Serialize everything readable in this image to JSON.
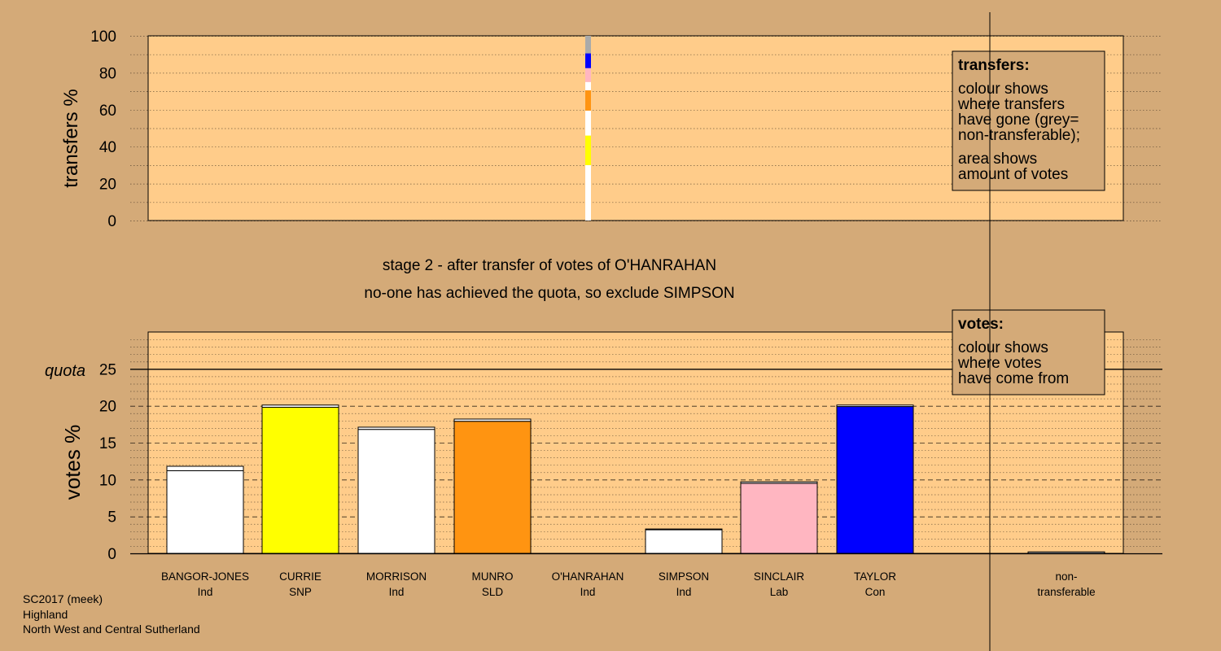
{
  "chart_data": [
    {
      "type": "bar",
      "id": "transfers",
      "ylabel": "transfers %",
      "ylim": [
        0,
        100
      ],
      "yticks": [
        0,
        20,
        40,
        60,
        80,
        100
      ],
      "grid": true,
      "transferred_from": "O'HANRAHAN",
      "segments": [
        {
          "to": "BANGOR-JONES",
          "value": 30.0,
          "color": "#ffffff"
        },
        {
          "to": "CURRIE",
          "value": 16.0,
          "color": "#ffff00"
        },
        {
          "to": "MORRISON",
          "value": 13.5,
          "color": "#ffffff"
        },
        {
          "to": "MUNRO",
          "value": 11.0,
          "color": "#ff9411"
        },
        {
          "to": "SIMPSON",
          "value": 4.5,
          "color": "#ffffff"
        },
        {
          "to": "SINCLAIR",
          "value": 7.5,
          "color": "#ffb6c1"
        },
        {
          "to": "TAYLOR",
          "value": 8.0,
          "color": "#0000ff"
        },
        {
          "to": "non-transferable",
          "value": 9.5,
          "color": "#aaaaaa"
        }
      ],
      "legend": {
        "title": "transfers:",
        "lines1": [
          "colour shows",
          "where transfers",
          "have gone (grey=",
          "non-transferable);"
        ],
        "lines2": [
          "area shows",
          "amount of votes"
        ],
        "placement": "top-right"
      }
    },
    {
      "type": "bar",
      "id": "votes",
      "ylabel": "votes %",
      "ylim": [
        0,
        30
      ],
      "yticks": [
        0,
        5,
        10,
        15,
        20,
        25
      ],
      "quota": 25,
      "quota_label": "quota",
      "grid": true,
      "candidates": [
        {
          "name": "BANGOR-JONES",
          "party": "Ind",
          "first": 11.2,
          "transfer": 0.6,
          "color": "#ffffff"
        },
        {
          "name": "CURRIE",
          "party": "SNP",
          "first": 19.8,
          "transfer": 0.3,
          "color": "#ffff00"
        },
        {
          "name": "MORRISON",
          "party": "Ind",
          "first": 16.8,
          "transfer": 0.3,
          "color": "#ffffff"
        },
        {
          "name": "MUNRO",
          "party": "SLD",
          "first": 17.9,
          "transfer": 0.3,
          "color": "#ff9411"
        },
        {
          "name": "O'HANRAHAN",
          "party": "Ind",
          "first": 0,
          "transfer": 0,
          "color": "#ffffff"
        },
        {
          "name": "SIMPSON",
          "party": "Ind",
          "first": 3.2,
          "transfer": 0.1,
          "color": "#ffffff"
        },
        {
          "name": "SINCLAIR",
          "party": "Lab",
          "first": 9.5,
          "transfer": 0.2,
          "color": "#ffb6c1"
        },
        {
          "name": "TAYLOR",
          "party": "Con",
          "first": 19.9,
          "transfer": 0.2,
          "color": "#0000ff"
        }
      ],
      "nontransferable": {
        "label1": "non-",
        "label2": "transferable",
        "value": 0.2
      },
      "legend": {
        "title": "votes:",
        "lines": [
          "colour shows",
          "where votes",
          "have come from"
        ],
        "placement": "top-right"
      }
    }
  ],
  "stage": {
    "line1": "stage 2 - after transfer of votes of O'HANRAHAN",
    "line2": "no-one has achieved the quota, so exclude SIMPSON"
  },
  "footer": {
    "line1": "SC2017 (meek)",
    "line2": "Highland",
    "line3": "North West and Central Sutherland"
  },
  "colors": {
    "background": "#d4aa78",
    "panel": "#ffcc8a",
    "transfer_stripe": "#ffffff"
  }
}
